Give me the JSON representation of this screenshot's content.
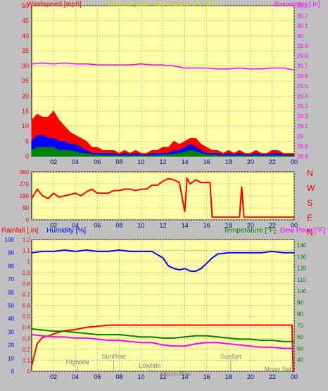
{
  "chart_data": [
    {
      "type": "line",
      "title": "24 hour graph day   October 25 2017",
      "left_label": "Windspeed [mph]",
      "right_label": "Barometer [.in]",
      "ylim": [
        0,
        50
      ],
      "yticks": [
        "0",
        "5",
        "10",
        "15",
        "20",
        "25",
        "30",
        "35",
        "40",
        "45",
        "50"
      ],
      "y2lim": [
        28.8,
        30.3
      ],
      "y2ticks": [
        "28.8",
        "28.9",
        "29",
        "29.1",
        "29.2",
        "29.3",
        "29.4",
        "29.5",
        "29.6",
        "29.7",
        "29.8",
        "29.9",
        "30",
        "30.1",
        "30.2",
        "30.3"
      ],
      "xlim": [
        0,
        24
      ],
      "xticks": [
        "02",
        "04",
        "06",
        "08",
        "10",
        "12",
        "14",
        "16",
        "18",
        "20",
        "22",
        "00"
      ],
      "grid": true,
      "series": [
        {
          "type": "area",
          "color": "#ff0000",
          "x": [
            0,
            0.5,
            1,
            1.5,
            2,
            2.5,
            3,
            3.5,
            4,
            4.5,
            5,
            5.5,
            6,
            6.5,
            7,
            7.5,
            8,
            8.5,
            9,
            9.5,
            10,
            10.5,
            11,
            11.5,
            12,
            12.5,
            13,
            13.5,
            14,
            14.5,
            15,
            15.5,
            16,
            16.5,
            17,
            17.5,
            18,
            18.5,
            19,
            19.5,
            20,
            20.5,
            21,
            21.5,
            22,
            22.5,
            23,
            23.5,
            24
          ],
          "values": [
            12,
            14,
            13,
            13,
            15,
            12,
            10,
            8,
            7,
            6,
            5,
            3,
            3,
            2,
            2,
            2,
            1,
            2,
            1,
            2,
            1,
            1,
            2,
            2,
            3,
            3,
            5,
            4,
            5,
            6,
            6,
            4,
            3,
            2,
            2,
            1,
            2,
            1,
            2,
            1,
            1,
            2,
            1,
            1,
            2,
            2,
            1,
            1,
            1
          ]
        },
        {
          "type": "area",
          "color": "#0000ff",
          "x": [
            0,
            0.5,
            1,
            1.5,
            2,
            2.5,
            3,
            3.5,
            4,
            4.5,
            5,
            5.5,
            6,
            6.5,
            7,
            7.5,
            8,
            8.5,
            9,
            9.5,
            10,
            10.5,
            11,
            11.5,
            12,
            12.5,
            13,
            13.5,
            14,
            14.5,
            15,
            15.5,
            16,
            16.5,
            17,
            17.5,
            18,
            18.5,
            19,
            19.5,
            20,
            20.5,
            21,
            21.5,
            22,
            22.5,
            23,
            23.5,
            24
          ],
          "values": [
            5,
            7,
            7,
            6,
            6,
            5,
            5,
            4,
            4,
            3,
            2,
            1,
            1,
            1,
            1,
            1,
            0.5,
            1,
            0.5,
            1,
            0.5,
            0.5,
            1,
            1,
            1,
            1,
            2,
            2,
            3,
            4,
            3,
            2,
            1,
            1,
            1,
            0.5,
            1,
            0.5,
            1,
            0.5,
            0.5,
            1,
            0.5,
            0.5,
            1,
            1,
            0.5,
            0.5,
            0.5
          ]
        },
        {
          "type": "area",
          "color": "#008000",
          "x": [
            0,
            0.5,
            1,
            1.5,
            2,
            2.5,
            3,
            3.5,
            4,
            4.5,
            5,
            5.5,
            6,
            6.5,
            7,
            7.5,
            8,
            8.5,
            9,
            9.5,
            10,
            10.5,
            11,
            11.5,
            12,
            12.5,
            13,
            13.5,
            14,
            14.5,
            15,
            15.5,
            16,
            16.5,
            17,
            17.5,
            18,
            18.5,
            19,
            19.5,
            20,
            20.5,
            21,
            21.5,
            22,
            22.5,
            23,
            23.5,
            24
          ],
          "values": [
            2,
            3,
            3,
            3,
            3,
            2,
            2,
            2,
            1.5,
            1,
            1,
            0.5,
            0.5,
            0.3,
            0.3,
            0.3,
            0.2,
            0.3,
            0.2,
            0.3,
            0.2,
            0.2,
            0.3,
            0.3,
            0.5,
            0.5,
            0.8,
            1,
            1.5,
            2,
            1.5,
            1,
            0.5,
            0.5,
            0.3,
            0.2,
            0.3,
            0.2,
            0.3,
            0.2,
            0.2,
            0.3,
            0.2,
            0.2,
            0.3,
            0.3,
            0.2,
            0.2,
            0.2
          ]
        },
        {
          "type": "line",
          "color": "#ff00ff",
          "axis": "y2",
          "x": [
            0,
            1,
            2,
            3,
            4,
            5,
            6,
            7,
            8,
            9,
            10,
            11,
            12,
            13,
            14,
            15,
            16,
            17,
            18,
            19,
            20,
            21,
            22,
            23,
            24
          ],
          "values": [
            29.72,
            29.73,
            29.72,
            29.73,
            29.72,
            29.72,
            29.71,
            29.71,
            29.71,
            29.71,
            29.72,
            29.71,
            29.71,
            29.7,
            29.68,
            29.68,
            29.68,
            29.67,
            29.67,
            29.68,
            29.67,
            29.67,
            29.68,
            29.68,
            29.66
          ]
        }
      ]
    },
    {
      "type": "line",
      "ylim": [
        0,
        360
      ],
      "yticks": [
        "0",
        "90",
        "180",
        "270",
        "360"
      ],
      "right_labels": [
        "N",
        "W",
        "S",
        "E",
        "N"
      ],
      "xlim": [
        0,
        24
      ],
      "xticks": [
        "02",
        "04",
        "06",
        "08",
        "10",
        "12",
        "14",
        "16",
        "18",
        "20",
        "22",
        "00"
      ],
      "grid": true,
      "series": [
        {
          "name": "",
          "color": "#ff0000",
          "x": [
            0,
            0.5,
            1,
            1.5,
            2,
            2.5,
            3,
            3.5,
            4,
            4.5,
            5,
            5.5,
            6,
            6.5,
            7,
            7.5,
            8,
            8.5,
            9,
            9.5,
            10,
            10.5,
            11,
            11.5,
            12,
            12.5,
            13,
            13.5,
            14,
            14.2,
            14.5,
            15,
            15.5,
            16,
            16.3,
            16.5,
            17,
            18,
            19,
            19.2,
            19.4,
            19.6,
            20,
            21,
            22,
            23,
            24
          ],
          "values": [
            160,
            230,
            180,
            160,
            200,
            170,
            180,
            190,
            200,
            180,
            210,
            230,
            200,
            200,
            200,
            220,
            220,
            230,
            230,
            220,
            230,
            230,
            260,
            260,
            290,
            310,
            300,
            280,
            60,
            310,
            270,
            300,
            280,
            280,
            280,
            20,
            20,
            20,
            20,
            250,
            20,
            20,
            20,
            20,
            20,
            20,
            20
          ]
        }
      ]
    },
    {
      "type": "line",
      "left_labels": [
        "Rainfall [.in]",
        "Humidity [%]"
      ],
      "right_labels": [
        "Temperature [°F]",
        "Dew Point [°F]"
      ],
      "ylim": [
        0,
        1.2
      ],
      "yticks": [
        "0",
        "0.1",
        "0.2",
        "0.3",
        "0.4",
        "0.5",
        "0.6",
        "0.7",
        "0.8",
        "0.9",
        "1",
        "1.1",
        "1.2"
      ],
      "y2lim": [
        0,
        100
      ],
      "y2ticks": [
        "0",
        "10",
        "20",
        "30",
        "40",
        "50",
        "60",
        "70",
        "80",
        "90",
        "100"
      ],
      "y3lim": [
        30,
        145
      ],
      "y3ticks": [
        "40",
        "50",
        "60",
        "70",
        "80",
        "90",
        "100",
        "110",
        "120",
        "130",
        "140"
      ],
      "xlim": [
        0,
        24
      ],
      "xticks": [
        "02",
        "04",
        "06",
        "08",
        "10",
        "12",
        "14",
        "16",
        "18",
        "20",
        "22",
        "00"
      ],
      "grid": true,
      "annotations": [
        "Hightide",
        "SunRise",
        "Lowtide",
        "Moon Rise",
        "SunSet",
        "Moon Set"
      ],
      "series": [
        {
          "name": "Rainfall",
          "color": "#ff0000",
          "x": [
            0,
            0.5,
            1,
            1.5,
            2,
            3,
            4,
            5,
            6,
            7,
            8,
            9,
            10,
            11,
            12,
            13,
            14,
            15,
            16,
            17,
            18,
            19,
            20,
            21,
            22,
            23,
            23.8,
            23.9,
            24
          ],
          "values": [
            0.05,
            0.25,
            0.31,
            0.32,
            0.34,
            0.37,
            0.38,
            0.4,
            0.41,
            0.42,
            0.42,
            0.42,
            0.42,
            0.42,
            0.42,
            0.42,
            0.42,
            0.42,
            0.42,
            0.42,
            0.42,
            0.42,
            0.42,
            0.42,
            0.42,
            0.42,
            0.42,
            0.0,
            0.0
          ]
        },
        {
          "name": "Humidity",
          "color": "#0000ff",
          "axis": "y2",
          "x": [
            0,
            1,
            2,
            3,
            4,
            5,
            6,
            7,
            8,
            9,
            10,
            11,
            12,
            12.5,
            13,
            13.5,
            14,
            14.5,
            15,
            15.5,
            16,
            16.5,
            17,
            18,
            19,
            20,
            21,
            22,
            23,
            24
          ],
          "values": [
            90,
            91,
            91,
            92,
            91,
            92,
            91,
            91,
            92,
            91,
            91,
            91,
            86,
            80,
            78,
            77,
            78,
            76,
            76,
            78,
            82,
            86,
            89,
            90,
            90,
            90,
            90,
            91,
            90,
            90
          ]
        },
        {
          "name": "Temperature",
          "color": "#008000",
          "axis": "y3",
          "x": [
            0,
            1,
            2,
            3,
            4,
            5,
            6,
            7,
            8,
            9,
            10,
            11,
            12,
            13,
            14,
            15,
            16,
            17,
            18,
            19,
            20,
            21,
            22,
            23,
            24
          ],
          "values": [
            67,
            66,
            65,
            65,
            64,
            63,
            62,
            62,
            62,
            61,
            60,
            60,
            59,
            59,
            60,
            61,
            61,
            60,
            59,
            58,
            58,
            57,
            57,
            56,
            56
          ]
        },
        {
          "name": "Dew Point",
          "color": "#ff00ff",
          "axis": "y3",
          "x": [
            0,
            1,
            2,
            3,
            4,
            5,
            6,
            7,
            8,
            9,
            10,
            11,
            12,
            13,
            14,
            15,
            16,
            17,
            18,
            19,
            20,
            21,
            22,
            23,
            24
          ],
          "values": [
            62,
            61,
            60,
            60,
            59,
            59,
            58,
            57,
            57,
            56,
            55,
            55,
            53,
            52,
            52,
            54,
            55,
            55,
            54,
            53,
            52,
            51,
            51,
            50,
            50
          ]
        }
      ]
    }
  ]
}
